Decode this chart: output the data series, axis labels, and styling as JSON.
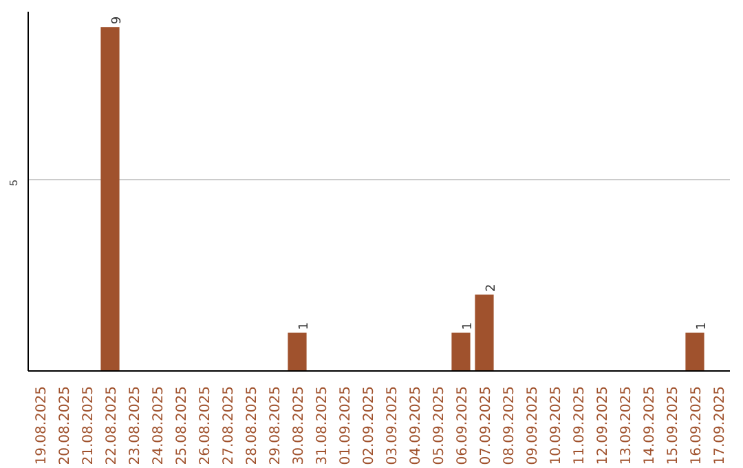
{
  "chart_data": {
    "type": "bar",
    "categories": [
      "19.08.2025",
      "20.08.2025",
      "21.08.2025",
      "22.08.2025",
      "23.08.2025",
      "24.08.2025",
      "25.08.2025",
      "26.08.2025",
      "27.08.2025",
      "28.08.2025",
      "29.08.2025",
      "30.08.2025",
      "31.08.2025",
      "01.09.2025",
      "02.09.2025",
      "03.09.2025",
      "04.09.2025",
      "05.09.2025",
      "06.09.2025",
      "07.09.2025",
      "08.09.2025",
      "09.09.2025",
      "10.09.2025",
      "11.09.2025",
      "12.09.2025",
      "13.09.2025",
      "14.09.2025",
      "15.09.2025",
      "16.09.2025",
      "17.09.2025"
    ],
    "values": [
      0,
      0,
      0,
      9,
      0,
      0,
      0,
      0,
      0,
      0,
      0,
      1,
      0,
      0,
      0,
      0,
      0,
      0,
      1,
      2,
      0,
      0,
      0,
      0,
      0,
      0,
      0,
      0,
      1,
      0
    ],
    "value_labels": [
      null,
      null,
      null,
      "9",
      null,
      null,
      null,
      null,
      null,
      null,
      null,
      "1",
      null,
      null,
      null,
      null,
      null,
      null,
      "1",
      "2",
      null,
      null,
      null,
      null,
      null,
      null,
      null,
      null,
      "1",
      null
    ],
    "color": "#a0522d",
    "ylim": [
      0,
      9.4
    ],
    "yticks": [
      5
    ],
    "grid": "y"
  }
}
